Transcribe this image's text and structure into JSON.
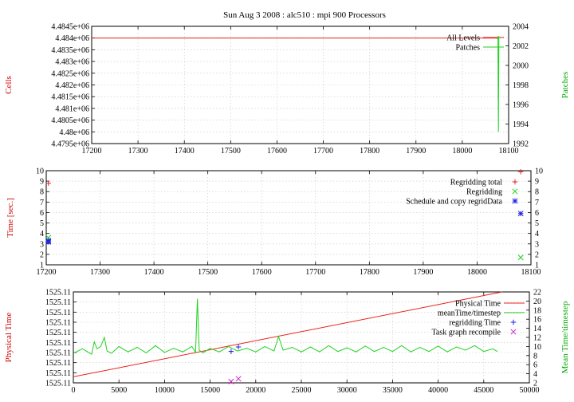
{
  "title": "Sun Aug 3 2008 : alc510 : mpi 900 Processors",
  "colors": {
    "red": "#e8231b",
    "green": "#1fd21f",
    "blue": "#1f1fe0",
    "magenta": "#d020d0"
  },
  "chart_data": [
    {
      "type": "line",
      "ylabel": "Cells",
      "y2label": "Patches",
      "xlim": [
        17200,
        18100
      ],
      "ylim": [
        4479500,
        4484500
      ],
      "y2lim": [
        1992,
        2004
      ],
      "xticks": [
        "17200",
        "17300",
        "17400",
        "17500",
        "17600",
        "17700",
        "17800",
        "17900",
        "18000",
        "18100"
      ],
      "yticks": [
        "4.4795e+06",
        "4.48e+06",
        "4.4805e+06",
        "4.481e+06",
        "4.4815e+06",
        "4.482e+06",
        "4.4825e+06",
        "4.483e+06",
        "4.4835e+06",
        "4.484e+06",
        "4.4845e+06"
      ],
      "y2ticks": [
        "1992",
        "1994",
        "1996",
        "1998",
        "2000",
        "2002",
        "2004"
      ],
      "legend_position": "top-right",
      "series": [
        {
          "name": "All Levels",
          "axis": "y",
          "color": "#e8231b",
          "x": [
            17200,
            17300,
            17400,
            17500,
            17600,
            17700,
            17800,
            17900,
            18000,
            18075,
            18078
          ],
          "y": [
            4484000,
            4484000,
            4484000,
            4484000,
            4484000,
            4484000,
            4484000,
            4484000,
            4484000,
            4484000,
            4483950
          ]
        },
        {
          "name": "Patches",
          "axis": "y2",
          "color": "#1fd21f",
          "x": [
            18077,
            18078,
            18078,
            18079
          ],
          "y": [
            2003.0,
            1993.2,
            1993.2,
            2003.0
          ]
        }
      ]
    },
    {
      "type": "scatter",
      "ylabel": "Time [sec.]",
      "xlim": [
        17200,
        18100
      ],
      "ylim": [
        1,
        10
      ],
      "xticks": [
        "17200",
        "17300",
        "17400",
        "17500",
        "17600",
        "17700",
        "17800",
        "17900",
        "18000",
        "18100"
      ],
      "yticks": [
        "1",
        "2",
        "3",
        "4",
        "5",
        "6",
        "7",
        "8",
        "9",
        "10"
      ],
      "legend_position": "top-right",
      "series": [
        {
          "name": "Regridding total",
          "marker": "plus",
          "color": "#e8231b",
          "x": [
            17204,
            18081
          ],
          "y": [
            8.8,
            9.9
          ]
        },
        {
          "name": "Regridding",
          "marker": "cross",
          "color": "#1fd21f",
          "x": [
            17204,
            18081
          ],
          "y": [
            3.6,
            1.7
          ]
        },
        {
          "name": "Schedule and copy regridData",
          "marker": "star",
          "color": "#1f1fe0",
          "x": [
            17204,
            17204,
            18081
          ],
          "y": [
            3.3,
            3.2,
            5.9
          ]
        }
      ]
    },
    {
      "type": "line",
      "ylabel": "Physical Time",
      "y2label": "Mean Time/timestep",
      "xlim": [
        0,
        50000
      ],
      "ylim": [
        0,
        9
      ],
      "y2lim": [
        2,
        22
      ],
      "xticks": [
        "0",
        "5000",
        "10000",
        "15000",
        "20000",
        "25000",
        "30000",
        "35000",
        "40000",
        "45000",
        "50000"
      ],
      "yticks": [
        "1525.11",
        "1525.11",
        "1525.11",
        "1525.11",
        "1525.11",
        "1525.11",
        "1525.11",
        "1525.11",
        "1525.11",
        "1525.11"
      ],
      "y2ticks": [
        "2",
        "4",
        "6",
        "8",
        "10",
        "12",
        "14",
        "16",
        "18",
        "20",
        "22"
      ],
      "legend_position": "top-right",
      "series": [
        {
          "name": "Physical Time",
          "axis": "y",
          "color": "#e8231b",
          "x": [
            0,
            47000
          ],
          "y": [
            0.6,
            9.0
          ]
        },
        {
          "name": "meanTime/timestep",
          "axis": "y2",
          "color": "#1fd21f",
          "x": [
            0,
            1000,
            2000,
            2300,
            2600,
            3000,
            3400,
            3700,
            4200,
            5000,
            6000,
            7000,
            8000,
            9000,
            10000,
            11000,
            12000,
            13000,
            13400,
            13600,
            13800,
            14200,
            15000,
            16000,
            17000,
            18000,
            19000,
            20000,
            21000,
            22000,
            22500,
            23000,
            24000,
            25000,
            26000,
            27000,
            28000,
            29000,
            30000,
            31000,
            32000,
            33000,
            34000,
            35000,
            36000,
            37000,
            38000,
            39000,
            40000,
            41000,
            42000,
            43000,
            44000,
            45000,
            46000,
            46500
          ],
          "y": [
            8.5,
            9.5,
            8.3,
            11,
            9.5,
            10,
            12,
            9,
            8.5,
            10,
            8.8,
            9.8,
            8.6,
            10.2,
            8.7,
            9.6,
            8.8,
            10,
            8.7,
            20.5,
            9.2,
            8.6,
            9.6,
            8.8,
            10,
            9,
            9.6,
            8.8,
            10,
            9,
            12.2,
            9.2,
            9.8,
            8.8,
            9.9,
            8.8,
            10.2,
            8.9,
            9.7,
            8.8,
            10.1,
            8.9,
            9.8,
            8.9,
            10.2,
            8.8,
            9.8,
            8.9,
            10.1,
            8.8,
            9.9,
            9.2,
            10.2,
            8.9,
            9.5,
            8.9
          ]
        },
        {
          "name": "regridding Time",
          "marker": "plus",
          "axis": "y2",
          "color": "#1f1fe0",
          "x": [
            17300,
            18100
          ],
          "y": [
            8.9,
            9.9
          ]
        },
        {
          "name": "Task graph recompile",
          "marker": "cross",
          "axis": "y2",
          "color": "#d020d0",
          "x": [
            17300,
            18100
          ],
          "y": [
            2.3,
            2.9
          ]
        }
      ]
    }
  ]
}
